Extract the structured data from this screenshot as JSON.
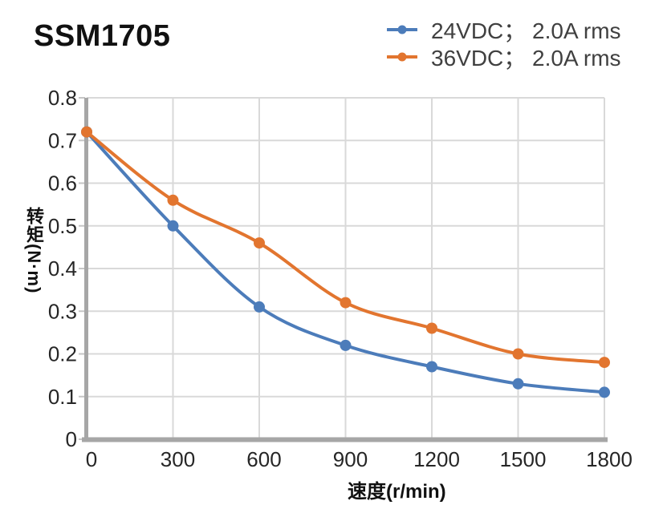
{
  "chart_data": {
    "type": "line",
    "title": "SSM1705",
    "xlabel": "速度(r/min)",
    "ylabel": "转矩(N·m)",
    "x": [
      0,
      300,
      600,
      900,
      1200,
      1500,
      1800
    ],
    "series": [
      {
        "name": "24VDC； 2.0A rms",
        "color": "#4C7CBA",
        "values": [
          0.72,
          0.5,
          0.31,
          0.22,
          0.17,
          0.13,
          0.11
        ]
      },
      {
        "name": "36VDC； 2.0A rms",
        "color": "#E2752F",
        "values": [
          0.72,
          0.56,
          0.46,
          0.32,
          0.26,
          0.2,
          0.18
        ]
      }
    ],
    "xlim": [
      0,
      1800
    ],
    "ylim": [
      0,
      0.8
    ],
    "x_tick_labels": [
      "0",
      "300",
      "600",
      "900",
      "1200",
      "1500",
      "1800"
    ],
    "y_tick_labels": [
      "0",
      "0.1",
      "0.2",
      "0.3",
      "0.4",
      "0.5",
      "0.6",
      "0.7",
      "0.8"
    ],
    "grid": true,
    "legend_position": "top-right",
    "style": {
      "background": "#FFFFFF",
      "grid_color": "#D9D9D9",
      "tick_color": "#C6C6C6",
      "axis_color": "#A6A6A6",
      "tick_label_color": "#262626",
      "legend_text_color": "#404040",
      "title_color": "#111111",
      "line_width": 4,
      "marker_radius": 7
    }
  }
}
